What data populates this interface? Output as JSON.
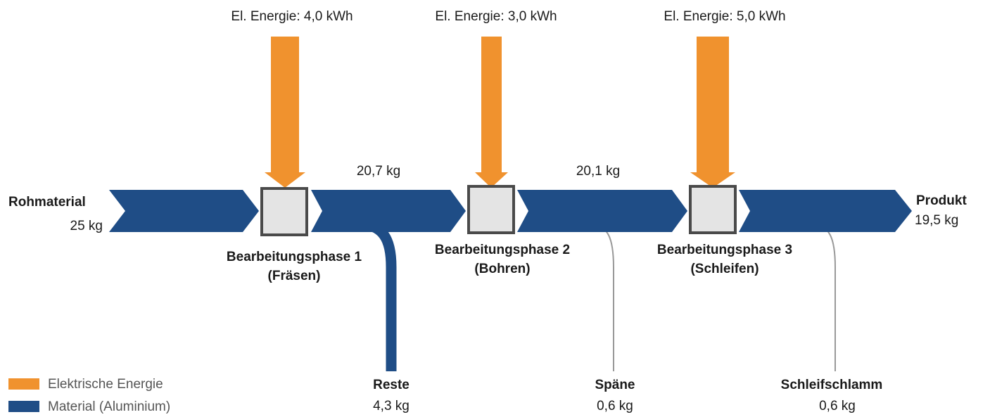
{
  "energy_inputs": [
    {
      "label": "El. Energie: 4,0 kWh"
    },
    {
      "label": "El. Energie: 3,0 kWh"
    },
    {
      "label": "El. Energie: 5,0 kWh"
    }
  ],
  "input": {
    "name": "Rohmaterial",
    "amount": "25 kg"
  },
  "intermediate_flows": [
    "20,7 kg",
    "20,1 kg"
  ],
  "output": {
    "name": "Produkt",
    "amount": "19,5 kg"
  },
  "phases": [
    {
      "name": "Bearbeitungsphase 1",
      "detail": "(Fräsen)"
    },
    {
      "name": "Bearbeitungsphase 2",
      "detail": "(Bohren)"
    },
    {
      "name": "Bearbeitungsphase 3",
      "detail": "(Schleifen)"
    }
  ],
  "losses": [
    {
      "name": "Reste",
      "amount": "4,3 kg"
    },
    {
      "name": "Späne",
      "amount": "0,6 kg"
    },
    {
      "name": "Schleifschlamm",
      "amount": "0,6 kg"
    }
  ],
  "legend": [
    "Elektrische Energie",
    "Material (Aluminium)"
  ]
}
